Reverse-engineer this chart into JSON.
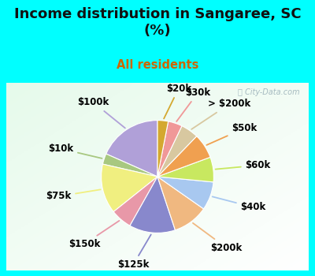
{
  "title": "Income distribution in Sangaree, SC\n(%)",
  "subtitle": "All residents",
  "title_color": "#111111",
  "subtitle_color": "#cc6600",
  "bg_top": "#00ffff",
  "bg_chart_left": "#e8f5f0",
  "bg_chart_right": "#d0e8e0",
  "watermark": "ⓘ City-Data.com",
  "labels": [
    "$100k",
    "$10k",
    "$75k",
    "$150k",
    "$125k",
    "$200k",
    "$40k",
    "$60k",
    "$50k",
    "> $200k",
    "$30k",
    "$20k"
  ],
  "values": [
    18,
    3,
    14,
    6,
    13,
    10,
    8,
    7,
    7,
    5,
    4,
    3
  ],
  "colors": [
    "#b0a0d8",
    "#a8c880",
    "#f0ef80",
    "#e898a8",
    "#8888cc",
    "#f0b880",
    "#a8c8f0",
    "#c8e860",
    "#f0a050",
    "#d8c8a0",
    "#f09898",
    "#d4a830"
  ],
  "start_angle": 90,
  "label_fontsize": 8.5,
  "title_fontsize": 13,
  "subtitle_fontsize": 10.5
}
